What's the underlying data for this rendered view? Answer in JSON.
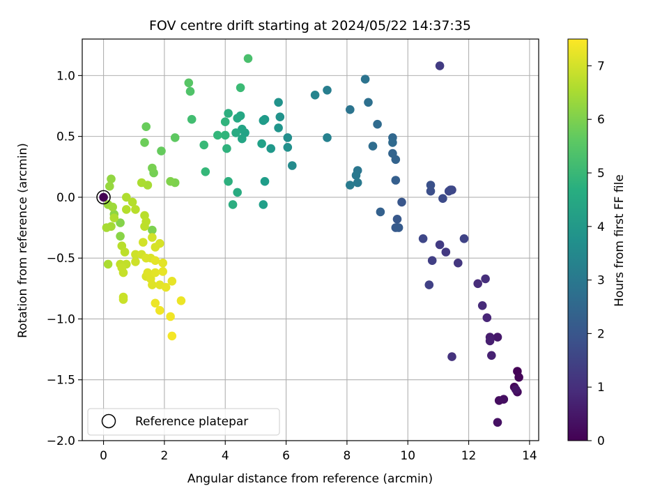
{
  "chart_data": {
    "type": "scatter",
    "title": "FOV centre drift starting at 2024/05/22 14:37:35",
    "xlabel": "Angular distance from reference (arcmin)",
    "ylabel": "Rotation from reference (arcmin)",
    "xlim": [
      -0.7,
      14.3
    ],
    "ylim": [
      -2.0,
      1.3
    ],
    "xticks": [
      0,
      2,
      4,
      6,
      8,
      10,
      12,
      14
    ],
    "xtick_labels": [
      "0",
      "2",
      "4",
      "6",
      "8",
      "10",
      "12",
      "14"
    ],
    "yticks": [
      -2.0,
      -1.5,
      -1.0,
      -0.5,
      0.0,
      0.5,
      1.0
    ],
    "ytick_labels": [
      "−2.0",
      "−1.5",
      "−1.0",
      "−0.5",
      "0.0",
      "0.5",
      "1.0"
    ],
    "grid": true,
    "colormap": "viridis",
    "colorbar": {
      "label": "Hours from first FF file",
      "range": [
        0,
        7.5
      ],
      "ticks": [
        0,
        1,
        2,
        3,
        4,
        5,
        6,
        7
      ],
      "tick_labels": [
        "0",
        "1",
        "2",
        "3",
        "4",
        "5",
        "6",
        "7"
      ]
    },
    "legend": {
      "placement": "lower-left",
      "entries": [
        {
          "label": "Reference platepar",
          "marker": "hollow-circle"
        }
      ]
    },
    "reference_point": {
      "x": 0,
      "y": 0
    },
    "points": [
      {
        "x": 13.6,
        "y": -1.43,
        "c": 0.05
      },
      {
        "x": 13.65,
        "y": -1.48,
        "c": 0.1
      },
      {
        "x": 13.5,
        "y": -1.56,
        "c": 0.15
      },
      {
        "x": 13.6,
        "y": -1.6,
        "c": 0.2
      },
      {
        "x": 13.0,
        "y": -1.67,
        "c": 0.25
      },
      {
        "x": 13.15,
        "y": -1.66,
        "c": 0.3
      },
      {
        "x": 12.95,
        "y": -1.85,
        "c": 0.35
      },
      {
        "x": 13.55,
        "y": -1.58,
        "c": 0.4
      },
      {
        "x": 12.95,
        "y": -1.15,
        "c": 0.5
      },
      {
        "x": 12.7,
        "y": -1.15,
        "c": 0.6
      },
      {
        "x": 12.7,
        "y": -1.18,
        "c": 0.65
      },
      {
        "x": 12.75,
        "y": -1.3,
        "c": 0.7
      },
      {
        "x": 12.6,
        "y": -0.99,
        "c": 0.8
      },
      {
        "x": 12.45,
        "y": -0.89,
        "c": 0.9
      },
      {
        "x": 12.3,
        "y": -0.71,
        "c": 0.95
      },
      {
        "x": 12.55,
        "y": -0.67,
        "c": 1.0
      },
      {
        "x": 11.45,
        "y": -1.31,
        "c": 1.1
      },
      {
        "x": 11.65,
        "y": -0.54,
        "c": 1.2
      },
      {
        "x": 11.25,
        "y": -0.45,
        "c": 1.25
      },
      {
        "x": 11.05,
        "y": -0.39,
        "c": 1.3
      },
      {
        "x": 10.8,
        "y": -0.52,
        "c": 1.4
      },
      {
        "x": 10.7,
        "y": -0.72,
        "c": 1.45
      },
      {
        "x": 11.85,
        "y": -0.34,
        "c": 1.5
      },
      {
        "x": 10.5,
        "y": -0.34,
        "c": 1.6
      },
      {
        "x": 11.05,
        "y": 1.08,
        "c": 1.3
      },
      {
        "x": 11.45,
        "y": 0.06,
        "c": 1.55
      },
      {
        "x": 11.35,
        "y": 0.05,
        "c": 1.6
      },
      {
        "x": 11.4,
        "y": 0.06,
        "c": 1.65
      },
      {
        "x": 11.15,
        "y": -0.01,
        "c": 1.7
      },
      {
        "x": 10.75,
        "y": 0.05,
        "c": 1.8
      },
      {
        "x": 10.75,
        "y": 0.1,
        "c": 1.85
      },
      {
        "x": 9.8,
        "y": -0.04,
        "c": 2.0
      },
      {
        "x": 9.65,
        "y": -0.18,
        "c": 2.05
      },
      {
        "x": 9.6,
        "y": -0.25,
        "c": 2.1
      },
      {
        "x": 9.7,
        "y": -0.25,
        "c": 2.15
      },
      {
        "x": 9.1,
        "y": -0.12,
        "c": 2.3
      },
      {
        "x": 9.6,
        "y": 0.14,
        "c": 2.25
      },
      {
        "x": 9.6,
        "y": 0.31,
        "c": 2.35
      },
      {
        "x": 9.5,
        "y": 0.36,
        "c": 2.4
      },
      {
        "x": 9.5,
        "y": 0.49,
        "c": 2.5
      },
      {
        "x": 9.5,
        "y": 0.45,
        "c": 2.55
      },
      {
        "x": 9.0,
        "y": 0.6,
        "c": 2.6
      },
      {
        "x": 8.85,
        "y": 0.42,
        "c": 2.65
      },
      {
        "x": 8.7,
        "y": 0.78,
        "c": 2.75
      },
      {
        "x": 8.6,
        "y": 0.97,
        "c": 2.85
      },
      {
        "x": 8.1,
        "y": 0.72,
        "c": 2.9
      },
      {
        "x": 8.35,
        "y": 0.22,
        "c": 2.95
      },
      {
        "x": 8.3,
        "y": 0.18,
        "c": 3.0
      },
      {
        "x": 8.35,
        "y": 0.12,
        "c": 3.05
      },
      {
        "x": 8.1,
        "y": 0.1,
        "c": 3.1
      },
      {
        "x": 7.35,
        "y": 0.88,
        "c": 3.2
      },
      {
        "x": 7.35,
        "y": 0.49,
        "c": 3.3
      },
      {
        "x": 6.95,
        "y": 0.84,
        "c": 3.4
      },
      {
        "x": 6.2,
        "y": 0.26,
        "c": 3.6
      },
      {
        "x": 6.05,
        "y": 0.49,
        "c": 3.7
      },
      {
        "x": 6.05,
        "y": 0.41,
        "c": 3.75
      },
      {
        "x": 5.8,
        "y": 0.66,
        "c": 3.8
      },
      {
        "x": 5.75,
        "y": 0.78,
        "c": 3.85
      },
      {
        "x": 5.75,
        "y": 0.57,
        "c": 3.9
      },
      {
        "x": 5.5,
        "y": 0.4,
        "c": 4.0
      },
      {
        "x": 5.3,
        "y": 0.64,
        "c": 4.05
      },
      {
        "x": 5.25,
        "y": 0.63,
        "c": 4.1
      },
      {
        "x": 5.3,
        "y": 0.13,
        "c": 4.15
      },
      {
        "x": 5.25,
        "y": -0.06,
        "c": 4.2
      },
      {
        "x": 5.2,
        "y": 0.44,
        "c": 4.25
      },
      {
        "x": 4.75,
        "y": 1.14,
        "c": 5.3
      },
      {
        "x": 4.65,
        "y": 0.53,
        "c": 4.3
      },
      {
        "x": 4.55,
        "y": 0.56,
        "c": 4.35
      },
      {
        "x": 4.55,
        "y": 0.48,
        "c": 4.4
      },
      {
        "x": 4.5,
        "y": 0.67,
        "c": 4.45
      },
      {
        "x": 4.4,
        "y": 0.65,
        "c": 4.5
      },
      {
        "x": 4.5,
        "y": 0.9,
        "c": 5.1
      },
      {
        "x": 4.35,
        "y": 0.53,
        "c": 4.55
      },
      {
        "x": 4.4,
        "y": 0.04,
        "c": 4.6
      },
      {
        "x": 4.25,
        "y": -0.06,
        "c": 4.65
      },
      {
        "x": 4.1,
        "y": 0.69,
        "c": 4.7
      },
      {
        "x": 4.1,
        "y": 0.13,
        "c": 4.75
      },
      {
        "x": 4.05,
        "y": 0.4,
        "c": 4.8
      },
      {
        "x": 4.0,
        "y": 0.62,
        "c": 4.85
      },
      {
        "x": 4.0,
        "y": 0.51,
        "c": 4.9
      },
      {
        "x": 3.75,
        "y": 0.51,
        "c": 4.95
      },
      {
        "x": 3.35,
        "y": 0.21,
        "c": 5.0
      },
      {
        "x": 3.3,
        "y": 0.43,
        "c": 5.05
      },
      {
        "x": 2.9,
        "y": 0.64,
        "c": 5.2
      },
      {
        "x": 2.85,
        "y": 0.87,
        "c": 5.4
      },
      {
        "x": 2.8,
        "y": 0.94,
        "c": 5.5
      },
      {
        "x": 2.35,
        "y": 0.49,
        "c": 5.6
      },
      {
        "x": 2.35,
        "y": 0.12,
        "c": 6.0
      },
      {
        "x": 2.2,
        "y": 0.13,
        "c": 6.05
      },
      {
        "x": 1.9,
        "y": 0.38,
        "c": 5.7
      },
      {
        "x": 1.4,
        "y": 0.58,
        "c": 5.75
      },
      {
        "x": 1.35,
        "y": 0.45,
        "c": 5.8
      },
      {
        "x": 1.65,
        "y": 0.2,
        "c": 5.9
      },
      {
        "x": 1.6,
        "y": 0.24,
        "c": 5.95
      },
      {
        "x": 1.6,
        "y": -0.27,
        "c": 6.0
      },
      {
        "x": 1.45,
        "y": 0.1,
        "c": 6.5
      },
      {
        "x": 1.25,
        "y": 0.12,
        "c": 6.55
      },
      {
        "x": 0.55,
        "y": -0.21,
        "c": 6.1
      },
      {
        "x": 0.55,
        "y": -0.32,
        "c": 6.15
      },
      {
        "x": 0.35,
        "y": -0.14,
        "c": 6.2
      },
      {
        "x": 0.25,
        "y": 0.15,
        "c": 6.25
      },
      {
        "x": 0.2,
        "y": 0.09,
        "c": 6.3
      },
      {
        "x": 0.15,
        "y": -0.06,
        "c": 6.35
      },
      {
        "x": 0.3,
        "y": -0.08,
        "c": 6.4
      },
      {
        "x": 0.25,
        "y": -0.24,
        "c": 6.45
      },
      {
        "x": 0.1,
        "y": -0.25,
        "c": 6.5
      },
      {
        "x": 0.15,
        "y": -0.55,
        "c": 6.55
      },
      {
        "x": 0.35,
        "y": -0.17,
        "c": 6.6
      },
      {
        "x": 0.75,
        "y": 0.0,
        "c": 6.6
      },
      {
        "x": 0.95,
        "y": -0.04,
        "c": 6.65
      },
      {
        "x": 0.75,
        "y": -0.1,
        "c": 6.65
      },
      {
        "x": 1.05,
        "y": -0.1,
        "c": 6.7
      },
      {
        "x": 1.35,
        "y": -0.15,
        "c": 6.7
      },
      {
        "x": 1.35,
        "y": -0.24,
        "c": 6.75
      },
      {
        "x": 1.4,
        "y": -0.2,
        "c": 6.75
      },
      {
        "x": 0.6,
        "y": -0.4,
        "c": 6.7
      },
      {
        "x": 0.7,
        "y": -0.45,
        "c": 6.75
      },
      {
        "x": 0.75,
        "y": -0.55,
        "c": 6.8
      },
      {
        "x": 0.55,
        "y": -0.55,
        "c": 6.8
      },
      {
        "x": 0.6,
        "y": -0.58,
        "c": 6.85
      },
      {
        "x": 0.65,
        "y": -0.62,
        "c": 6.85
      },
      {
        "x": 0.65,
        "y": -0.82,
        "c": 6.9
      },
      {
        "x": 0.65,
        "y": -0.84,
        "c": 6.9
      },
      {
        "x": 1.05,
        "y": -0.47,
        "c": 6.95
      },
      {
        "x": 1.05,
        "y": -0.53,
        "c": 6.95
      },
      {
        "x": 1.25,
        "y": -0.47,
        "c": 7.0
      },
      {
        "x": 1.3,
        "y": -0.37,
        "c": 7.0
      },
      {
        "x": 1.6,
        "y": -0.33,
        "c": 7.0
      },
      {
        "x": 1.7,
        "y": -0.41,
        "c": 7.05
      },
      {
        "x": 1.85,
        "y": -0.38,
        "c": 7.05
      },
      {
        "x": 1.4,
        "y": -0.5,
        "c": 7.1
      },
      {
        "x": 1.55,
        "y": -0.5,
        "c": 7.1
      },
      {
        "x": 1.4,
        "y": -0.65,
        "c": 7.1
      },
      {
        "x": 1.45,
        "y": -0.62,
        "c": 7.15
      },
      {
        "x": 1.55,
        "y": -0.67,
        "c": 7.15
      },
      {
        "x": 1.6,
        "y": -0.72,
        "c": 7.15
      },
      {
        "x": 1.7,
        "y": -0.52,
        "c": 7.2
      },
      {
        "x": 1.7,
        "y": -0.62,
        "c": 7.2
      },
      {
        "x": 1.85,
        "y": -0.72,
        "c": 7.2
      },
      {
        "x": 1.95,
        "y": -0.54,
        "c": 7.2
      },
      {
        "x": 1.95,
        "y": -0.61,
        "c": 7.25
      },
      {
        "x": 2.05,
        "y": -0.74,
        "c": 7.25
      },
      {
        "x": 2.25,
        "y": -0.69,
        "c": 7.25
      },
      {
        "x": 2.55,
        "y": -0.85,
        "c": 7.3
      },
      {
        "x": 1.7,
        "y": -0.87,
        "c": 7.3
      },
      {
        "x": 1.85,
        "y": -0.93,
        "c": 7.35
      },
      {
        "x": 2.2,
        "y": -0.98,
        "c": 7.35
      },
      {
        "x": 2.25,
        "y": -1.14,
        "c": 7.4
      },
      {
        "x": 0.0,
        "y": 0.0,
        "c": 0.0
      }
    ]
  }
}
